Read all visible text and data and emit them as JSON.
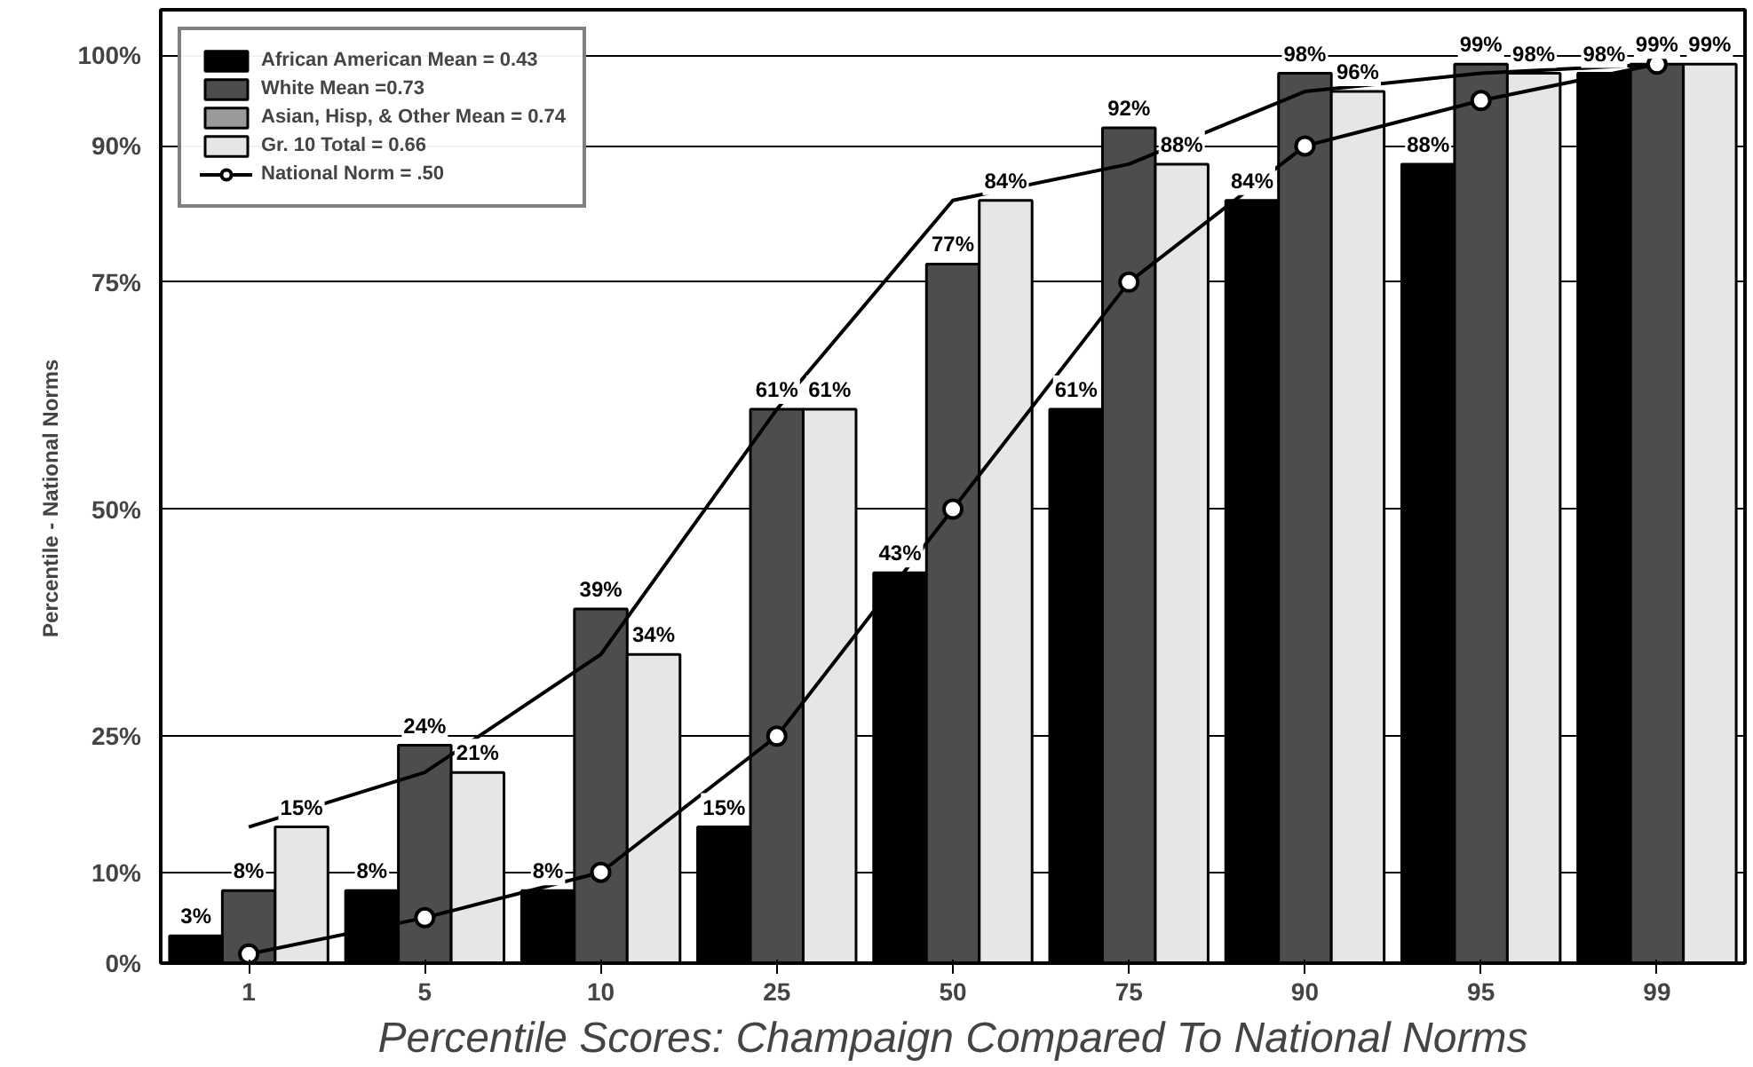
{
  "chart_data": {
    "type": "bar",
    "categories": [
      "1",
      "5",
      "10",
      "25",
      "50",
      "75",
      "90",
      "95",
      "99"
    ],
    "xlabel": "Percentile Scores: Champaign Compared To National Norms",
    "ylabel": "Percentile -     National Norms",
    "ylim": [
      0,
      105
    ],
    "yticks": [
      {
        "value": 0,
        "label": "0%"
      },
      {
        "value": 10,
        "label": "10%"
      },
      {
        "value": 25,
        "label": "25%"
      },
      {
        "value": 50,
        "label": "50%"
      },
      {
        "value": 75,
        "label": "75%"
      },
      {
        "value": 90,
        "label": "90%"
      },
      {
        "value": 100,
        "label": "100%"
      }
    ],
    "grid": "y",
    "legend": "top left",
    "series": [
      {
        "name": "African American Mean = 0.43",
        "color": "#000000",
        "values": [
          3,
          8,
          8,
          15,
          43,
          61,
          84,
          88,
          98
        ],
        "value_labels": [
          "3%",
          "8%",
          "8%",
          "15%",
          "43%",
          "61%",
          "84%",
          "88%",
          "98%"
        ]
      },
      {
        "name": "White Mean =0.73",
        "color": "#4d4d4d",
        "values": [
          8,
          24,
          39,
          61,
          77,
          92,
          98,
          99,
          99
        ],
        "value_labels": [
          "8%",
          "24%",
          "39%",
          "61%",
          "77%",
          "92%",
          "98%",
          "99%",
          "99%"
        ]
      },
      {
        "name": "Asian, Hisp, & Other Mean = 0.74",
        "color": "#9a9a9a",
        "values": [
          null,
          null,
          null,
          null,
          null,
          null,
          null,
          null,
          null
        ]
      },
      {
        "name": "Gr. 10 Total = 0.66",
        "color": "#e6e6e6",
        "values": [
          15,
          21,
          34,
          61,
          84,
          88,
          96,
          98,
          99
        ],
        "value_labels": [
          "15%",
          "21%",
          "34%",
          "61%",
          "84%",
          "88%",
          "96%",
          "98%",
          "99%"
        ]
      },
      {
        "type": "line",
        "color": "#000000",
        "marker": "none",
        "values": [
          15,
          21,
          34,
          61,
          84,
          88,
          96,
          98,
          99
        ]
      },
      {
        "name": "National Norm = .50",
        "type": "line",
        "color": "#000000",
        "marker": "circle",
        "values": [
          1,
          5,
          10,
          25,
          50,
          75,
          90,
          95,
          99
        ]
      }
    ]
  }
}
